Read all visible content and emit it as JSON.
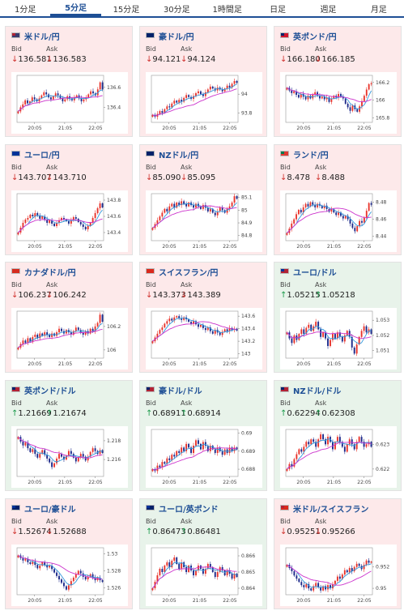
{
  "tabs": [
    {
      "label": "1分足",
      "active": false
    },
    {
      "label": "5分足",
      "active": true
    },
    {
      "label": "15分足",
      "active": false
    },
    {
      "label": "30分足",
      "active": false
    },
    {
      "label": "1時間足",
      "active": false
    },
    {
      "label": "日足",
      "active": false
    },
    {
      "label": "週足",
      "active": false
    },
    {
      "label": "月足",
      "active": false
    }
  ],
  "labels": {
    "bid": "Bid",
    "ask": "Ask"
  },
  "colors": {
    "down_bg": "#fde9ea",
    "up_bg": "#e8f3ea",
    "candle_up": "#e8332b",
    "candle_down": "#1d2a8a",
    "ma_short": "#3399dd",
    "ma_long": "#cc33cc",
    "link": "#1e4f95"
  },
  "time_ticks": [
    "20:05",
    "21:05",
    "22:05"
  ],
  "cards": [
    {
      "pair": "米ドル/円",
      "flag": [
        "#b22234",
        "#3c3b6e",
        "#ffffff"
      ],
      "dir": "down",
      "arrow": "↓",
      "bid": "136.581",
      "ask": "136.583",
      "chart_data": {
        "type": "candlestick",
        "ylim": [
          136.25,
          136.72
        ],
        "yticks": [
          "136.6",
          "136.4"
        ],
        "ytick_values": [
          136.6,
          136.4
        ],
        "close": [
          136.36,
          136.4,
          136.43,
          136.47,
          136.44,
          136.46,
          136.5,
          136.48,
          136.46,
          136.49,
          136.52,
          136.55,
          136.53,
          136.5,
          136.48,
          136.51,
          136.54,
          136.52,
          136.49,
          136.46,
          136.48,
          136.51,
          136.49,
          136.47,
          136.5,
          136.52,
          136.49,
          136.46,
          136.48,
          136.5,
          136.53,
          136.56,
          136.54,
          136.52,
          136.58,
          136.65,
          136.58
        ]
      }
    },
    {
      "pair": "豪ドル/円",
      "flag": [
        "#012169",
        "#012169",
        "#ffffff"
      ],
      "dir": "down",
      "arrow": "↓",
      "bid": "94.121",
      "ask": "94.124",
      "chart_data": {
        "type": "candlestick",
        "ylim": [
          93.7,
          94.2
        ],
        "yticks": [
          "94",
          "93.8"
        ],
        "ytick_values": [
          94.0,
          93.8
        ],
        "close": [
          93.78,
          93.76,
          93.79,
          93.82,
          93.8,
          93.84,
          93.87,
          93.86,
          93.9,
          93.93,
          93.91,
          93.94,
          93.92,
          93.96,
          93.99,
          93.97,
          93.95,
          93.98,
          94.01,
          94.03,
          94.0,
          93.98,
          94.02,
          94.05,
          94.08,
          94.06,
          94.04,
          94.07,
          94.05,
          94.03,
          94.06,
          94.09,
          94.07,
          94.11,
          94.14,
          94.12
        ]
      }
    },
    {
      "pair": "英ポンド/円",
      "flag": [
        "#012169",
        "#cf142b",
        "#ffffff"
      ],
      "dir": "down",
      "arrow": "↓",
      "bid": "166.180",
      "ask": "166.185",
      "chart_data": {
        "type": "candlestick",
        "ylim": [
          165.75,
          166.28
        ],
        "yticks": [
          "166.2",
          "166",
          "165.8"
        ],
        "ytick_values": [
          166.2,
          166.0,
          165.8
        ],
        "close": [
          166.14,
          166.11,
          166.08,
          166.1,
          166.06,
          166.03,
          166.07,
          166.04,
          166.01,
          166.05,
          166.02,
          166.06,
          166.09,
          166.05,
          166.02,
          166.04,
          166.01,
          166.03,
          165.98,
          166.02,
          166.05,
          166.03,
          166.07,
          166.04,
          166.02,
          165.96,
          165.92,
          165.88,
          165.94,
          165.9,
          165.87,
          165.93,
          165.99,
          166.05,
          166.12,
          166.18,
          166.19
        ]
      }
    },
    {
      "pair": "ユーロ/円",
      "flag": [
        "#003399",
        "#003399",
        "#ffcc00"
      ],
      "dir": "down",
      "arrow": "↓",
      "bid": "143.707",
      "ask": "143.710",
      "chart_data": {
        "type": "candlestick",
        "ylim": [
          143.3,
          143.88
        ],
        "yticks": [
          "143.8",
          "143.6",
          "143.4"
        ],
        "ytick_values": [
          143.8,
          143.6,
          143.4
        ],
        "close": [
          143.4,
          143.46,
          143.52,
          143.56,
          143.58,
          143.62,
          143.6,
          143.64,
          143.61,
          143.57,
          143.6,
          143.56,
          143.52,
          143.55,
          143.51,
          143.48,
          143.52,
          143.55,
          143.58,
          143.56,
          143.54,
          143.51,
          143.55,
          143.59,
          143.57,
          143.53,
          143.5,
          143.47,
          143.44,
          143.48,
          143.52,
          143.58,
          143.64,
          143.7,
          143.76,
          143.71
        ]
      }
    },
    {
      "pair": "NZドル/円",
      "flag": [
        "#012169",
        "#012169",
        "#cc142b"
      ],
      "dir": "down",
      "arrow": "↓",
      "bid": "85.090",
      "ask": "85.095",
      "chart_data": {
        "type": "candlestick",
        "ylim": [
          84.76,
          85.13
        ],
        "yticks": [
          "85.1",
          "85",
          "84.9",
          "84.8"
        ],
        "ytick_values": [
          85.1,
          85.0,
          84.9,
          84.8
        ],
        "close": [
          84.86,
          84.89,
          84.92,
          84.95,
          84.98,
          85.01,
          84.99,
          85.03,
          85.05,
          85.02,
          85.06,
          85.04,
          85.07,
          85.05,
          85.03,
          85.06,
          85.04,
          85.02,
          85.05,
          85.03,
          85.01,
          85.04,
          85.02,
          84.99,
          85.01,
          84.98,
          84.96,
          84.99,
          85.02,
          85.0,
          84.98,
          85.01,
          85.03,
          85.06,
          85.11,
          85.09
        ]
      }
    },
    {
      "pair": "ランド/円",
      "flag": [
        "#007a4d",
        "#de3831",
        "#002395"
      ],
      "dir": "down",
      "arrow": "↓",
      "bid": "8.478",
      "ask": "8.488",
      "chart_data": {
        "type": "candlestick",
        "ylim": [
          8.435,
          8.49
        ],
        "yticks": [
          "8.48",
          "8.46",
          "8.44"
        ],
        "ytick_values": [
          8.48,
          8.46,
          8.44
        ],
        "close": [
          8.444,
          8.449,
          8.455,
          8.46,
          8.466,
          8.471,
          8.468,
          8.474,
          8.478,
          8.475,
          8.48,
          8.477,
          8.474,
          8.478,
          8.476,
          8.473,
          8.476,
          8.472,
          8.469,
          8.472,
          8.468,
          8.465,
          8.468,
          8.464,
          8.461,
          8.464,
          8.46,
          8.455,
          8.45,
          8.446,
          8.452,
          8.458,
          8.456,
          8.462,
          8.47,
          8.479,
          8.477
        ]
      }
    },
    {
      "pair": "カナダドル/円",
      "flag": [
        "#d52b1e",
        "#d52b1e",
        "#ffffff"
      ],
      "dir": "down",
      "arrow": "↓",
      "bid": "106.237",
      "ask": "106.242",
      "chart_data": {
        "type": "candlestick",
        "ylim": [
          105.93,
          106.33
        ],
        "yticks": [
          "106.2",
          "106"
        ],
        "ytick_values": [
          106.2,
          106.0
        ],
        "close": [
          106.02,
          106.05,
          106.08,
          106.06,
          106.1,
          106.07,
          106.11,
          106.13,
          106.1,
          106.14,
          106.12,
          106.15,
          106.13,
          106.11,
          106.14,
          106.12,
          106.15,
          106.18,
          106.16,
          106.14,
          106.17,
          106.15,
          106.13,
          106.16,
          106.19,
          106.17,
          106.15,
          106.13,
          106.16,
          106.14,
          106.18,
          106.16,
          106.2,
          106.23,
          106.3,
          106.24
        ]
      }
    },
    {
      "pair": "スイスフラン/円",
      "flag": [
        "#da291c",
        "#da291c",
        "#ffffff"
      ],
      "dir": "down",
      "arrow": "↓",
      "bid": "143.373",
      "ask": "143.389",
      "chart_data": {
        "type": "candlestick",
        "ylim": [
          142.93,
          143.68
        ],
        "yticks": [
          "143.6",
          "143.4",
          "143.2",
          "143"
        ],
        "ytick_values": [
          143.6,
          143.4,
          143.2,
          143.0
        ],
        "close": [
          143.2,
          143.26,
          143.32,
          143.38,
          143.42,
          143.48,
          143.52,
          143.56,
          143.53,
          143.58,
          143.6,
          143.57,
          143.54,
          143.58,
          143.55,
          143.51,
          143.48,
          143.52,
          143.47,
          143.43,
          143.46,
          143.41,
          143.38,
          143.42,
          143.36,
          143.32,
          143.38,
          143.34,
          143.3,
          143.35,
          143.39,
          143.36,
          143.41,
          143.38,
          143.4,
          143.37
        ]
      }
    },
    {
      "pair": "ユーロ/ドル",
      "flag": [
        "#003399",
        "#b22234",
        "#ffffff"
      ],
      "dir": "up",
      "arrow": "↑",
      "bid": "1.05215",
      "ask": "1.05218",
      "chart_data": {
        "type": "candlestick",
        "ylim": [
          1.0505,
          1.0536
        ],
        "yticks": [
          "1.053",
          "1.052",
          "1.051"
        ],
        "ytick_values": [
          1.053,
          1.052,
          1.051
        ],
        "close": [
          1.0522,
          1.0518,
          1.0515,
          1.052,
          1.0517,
          1.0521,
          1.0524,
          1.0521,
          1.0525,
          1.0527,
          1.0523,
          1.0526,
          1.0529,
          1.0524,
          1.0519,
          1.0522,
          1.0518,
          1.0513,
          1.0517,
          1.0521,
          1.0518,
          1.0522,
          1.0519,
          1.0516,
          1.052,
          1.0523,
          1.0519,
          1.0512,
          1.0508,
          1.0514,
          1.0519,
          1.0523,
          1.0526,
          1.0522,
          1.0524,
          1.0521
        ]
      }
    },
    {
      "pair": "英ポンド/ドル",
      "flag": [
        "#012169",
        "#b22234",
        "#ffffff"
      ],
      "dir": "up",
      "arrow": "↑",
      "bid": "1.21669",
      "ask": "1.21674",
      "chart_data": {
        "type": "candlestick",
        "ylim": [
          1.2142,
          1.2192
        ],
        "yticks": [
          "1.218",
          "1.216"
        ],
        "ytick_values": [
          1.218,
          1.216
        ],
        "close": [
          1.2184,
          1.2179,
          1.2175,
          1.2178,
          1.2172,
          1.2168,
          1.2171,
          1.2166,
          1.2162,
          1.2166,
          1.217,
          1.2165,
          1.2161,
          1.2157,
          1.2152,
          1.2156,
          1.2161,
          1.2166,
          1.2163,
          1.216,
          1.2164,
          1.2169,
          1.2166,
          1.2162,
          1.2158,
          1.2162,
          1.2166,
          1.2163,
          1.2159,
          1.2163,
          1.2168,
          1.2172,
          1.2169,
          1.2166,
          1.217,
          1.2167
        ]
      }
    },
    {
      "pair": "豪ドル/ドル",
      "flag": [
        "#012169",
        "#b22234",
        "#ffffff"
      ],
      "dir": "up",
      "arrow": "↑",
      "bid": "0.68911",
      "ask": "0.68914",
      "chart_data": {
        "type": "candlestick",
        "ylim": [
          0.6876,
          0.6902
        ],
        "yticks": [
          "0.69",
          "0.689",
          "0.688"
        ],
        "ytick_values": [
          0.69,
          0.689,
          0.688
        ],
        "close": [
          0.688,
          0.6879,
          0.6882,
          0.6881,
          0.6884,
          0.6883,
          0.6886,
          0.6885,
          0.6888,
          0.6887,
          0.689,
          0.6889,
          0.6892,
          0.689,
          0.6894,
          0.6892,
          0.6889,
          0.6893,
          0.6896,
          0.6894,
          0.6891,
          0.6895,
          0.6893,
          0.689,
          0.6893,
          0.6891,
          0.6889,
          0.6892,
          0.689,
          0.6888,
          0.6891,
          0.6889,
          0.6892,
          0.689,
          0.6892,
          0.6891
        ]
      }
    },
    {
      "pair": "NZドル/ドル",
      "flag": [
        "#012169",
        "#b22234",
        "#ffffff"
      ],
      "dir": "up",
      "arrow": "↑",
      "bid": "0.62294",
      "ask": "0.62308",
      "chart_data": {
        "type": "candlestick",
        "ylim": [
          0.6217,
          0.6236
        ],
        "yticks": [
          "0.623",
          "0.622"
        ],
        "ytick_values": [
          0.623,
          0.622
        ],
        "close": [
          0.622,
          0.6222,
          0.6221,
          0.6224,
          0.6226,
          0.6228,
          0.6227,
          0.6229,
          0.6231,
          0.623,
          0.6232,
          0.6231,
          0.6229,
          0.6232,
          0.6234,
          0.6232,
          0.623,
          0.6233,
          0.6231,
          0.6228,
          0.6231,
          0.6233,
          0.6231,
          0.6229,
          0.6227,
          0.623,
          0.6232,
          0.623,
          0.6228,
          0.6231,
          0.6233,
          0.6231,
          0.6229,
          0.623,
          0.6231,
          0.6229
        ]
      }
    },
    {
      "pair": "ユーロ/豪ドル",
      "flag": [
        "#003399",
        "#012169",
        "#ffcc00"
      ],
      "dir": "down",
      "arrow": "↓",
      "bid": "1.52674",
      "ask": "1.52688",
      "chart_data": {
        "type": "candlestick",
        "ylim": [
          1.5252,
          1.5307
        ],
        "yticks": [
          "1.53",
          "1.528",
          "1.526"
        ],
        "ytick_values": [
          1.53,
          1.528,
          1.526
        ],
        "close": [
          1.5298,
          1.5295,
          1.5292,
          1.5294,
          1.529,
          1.5288,
          1.5291,
          1.5287,
          1.5283,
          1.5286,
          1.529,
          1.5287,
          1.5284,
          1.5286,
          1.5282,
          1.5278,
          1.5274,
          1.527,
          1.5266,
          1.5262,
          1.5258,
          1.5263,
          1.5268,
          1.5272,
          1.5276,
          1.528,
          1.5277,
          1.5273,
          1.527,
          1.5273,
          1.5276,
          1.5272,
          1.5269,
          1.5272,
          1.5269,
          1.5267
        ]
      }
    },
    {
      "pair": "ユーロ/英ポンド",
      "flag": [
        "#003399",
        "#012169",
        "#ffcc00"
      ],
      "dir": "up",
      "arrow": "↑",
      "bid": "0.86473",
      "ask": "0.86481",
      "chart_data": {
        "type": "candlestick",
        "ylim": [
          0.8636,
          0.8665
        ],
        "yticks": [
          "0.866",
          "0.865",
          "0.864"
        ],
        "ytick_values": [
          0.866,
          0.865,
          0.864
        ],
        "close": [
          0.864,
          0.8644,
          0.8648,
          0.8652,
          0.865,
          0.8654,
          0.8656,
          0.8653,
          0.8657,
          0.8659,
          0.8655,
          0.8652,
          0.8656,
          0.8653,
          0.865,
          0.8654,
          0.8651,
          0.8648,
          0.8651,
          0.8654,
          0.8652,
          0.8649,
          0.8652,
          0.8655,
          0.8653,
          0.865,
          0.8647,
          0.865,
          0.8653,
          0.8651,
          0.8648,
          0.8651,
          0.8649,
          0.8646,
          0.8649,
          0.8647
        ]
      }
    },
    {
      "pair": "米ドル/スイスフラン",
      "flag": [
        "#b22234",
        "#da291c",
        "#ffffff"
      ],
      "dir": "down",
      "arrow": "↓",
      "bid": "0.95251",
      "ask": "0.95266",
      "chart_data": {
        "type": "candlestick",
        "ylim": [
          0.9494,
          0.9538
        ],
        "yticks": [
          "0.952",
          "0.95"
        ],
        "ytick_values": [
          0.952,
          0.95
        ],
        "close": [
          0.9522,
          0.9519,
          0.9516,
          0.9512,
          0.9509,
          0.9506,
          0.9503,
          0.9501,
          0.9504,
          0.95,
          0.9498,
          0.9502,
          0.9505,
          0.9501,
          0.9498,
          0.9502,
          0.9499,
          0.9503,
          0.95,
          0.9504,
          0.9507,
          0.9511,
          0.9509,
          0.9513,
          0.9517,
          0.9515,
          0.9519,
          0.9516,
          0.952,
          0.9523,
          0.9521,
          0.9518,
          0.9522,
          0.9526,
          0.9524,
          0.9525
        ]
      }
    }
  ]
}
